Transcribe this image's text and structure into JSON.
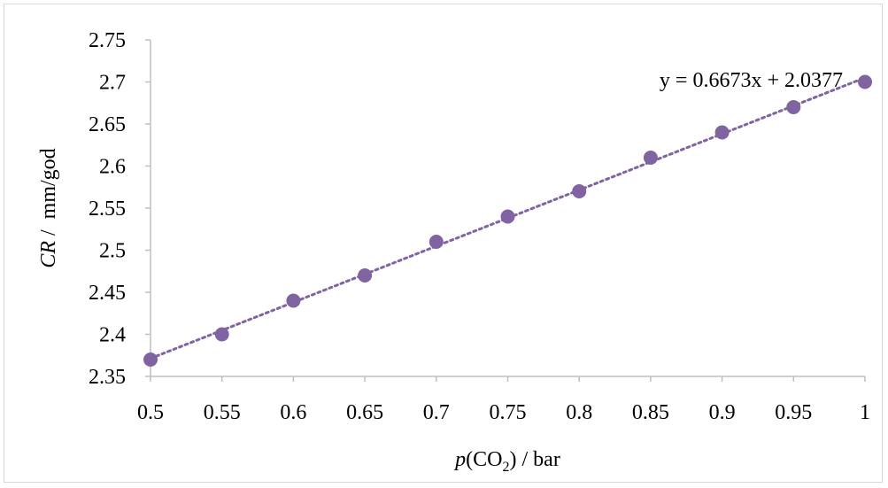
{
  "chart_data": {
    "type": "scatter",
    "x": [
      0.5,
      0.55,
      0.6,
      0.65,
      0.7,
      0.75,
      0.8,
      0.85,
      0.9,
      0.95,
      1.0
    ],
    "y": [
      2.37,
      2.4,
      2.44,
      2.47,
      2.51,
      2.54,
      2.57,
      2.61,
      2.64,
      2.67,
      2.7
    ],
    "xlim": [
      0.5,
      1.0
    ],
    "ylim": [
      2.35,
      2.75
    ],
    "x_ticks": [
      "0.5",
      "0.55",
      "0.6",
      "0.65",
      "0.7",
      "0.75",
      "0.8",
      "0.85",
      "0.9",
      "0.95",
      "1"
    ],
    "y_ticks": [
      "2.35",
      "2.4",
      "2.45",
      "2.5",
      "2.55",
      "2.6",
      "2.65",
      "2.7",
      "2.75"
    ],
    "xlabel": {
      "italic": "p",
      "pre": "(CO",
      "sub": "2",
      "post": ") / bar"
    },
    "ylabel": {
      "italic": "CR",
      "rest": " /  mm/god"
    },
    "trendline": {
      "slope": 0.6673,
      "intercept": 2.0377,
      "style": "dotted",
      "equation_label": "y = 0.6673x + 2.0377"
    },
    "marker_color": "#8064a2",
    "axis_color": "#bfbfbf",
    "grid": false,
    "legend": "none"
  }
}
